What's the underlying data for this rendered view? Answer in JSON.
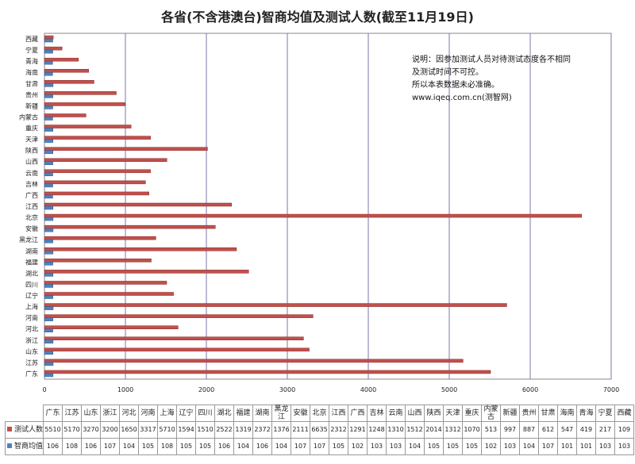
{
  "chart_data": {
    "type": "bar",
    "orientation": "horizontal",
    "title": "各省(不含港澳台)智商均值及测试人数(截至11月19日)",
    "categories": [
      "广东",
      "江苏",
      "山东",
      "浙江",
      "河北",
      "河南",
      "上海",
      "辽宁",
      "四川",
      "湖北",
      "福建",
      "湖南",
      "黑龙江",
      "安徽",
      "北京",
      "江西",
      "广西",
      "吉林",
      "云南",
      "山西",
      "陕西",
      "天津",
      "重庆",
      "内蒙古",
      "新疆",
      "贵州",
      "甘肃",
      "海南",
      "青海",
      "宁夏",
      "西藏"
    ],
    "series": [
      {
        "name": "测试人数",
        "color": "#c0504d",
        "values": [
          5510,
          5170,
          3270,
          3200,
          1650,
          3317,
          5710,
          1594,
          1510,
          2522,
          1319,
          2372,
          1376,
          2111,
          6635,
          2312,
          1291,
          1248,
          1310,
          1512,
          2014,
          1312,
          1070,
          513,
          997,
          887,
          612,
          547,
          419,
          217,
          109
        ]
      },
      {
        "name": "智商均值",
        "color": "#4f81bd",
        "values": [
          106,
          108,
          106,
          107,
          104,
          105,
          108,
          105,
          105,
          106,
          104,
          106,
          104,
          107,
          107,
          105,
          102,
          103,
          103,
          104,
          105,
          105,
          105,
          102,
          103,
          104,
          107,
          101,
          101,
          103,
          103
        ]
      }
    ],
    "xlim": [
      0,
      7000
    ],
    "xticks": [
      "0",
      "1000",
      "2000",
      "3000",
      "4000",
      "5000",
      "6000",
      "7000"
    ],
    "grid": true,
    "legend": "data-table"
  },
  "note": [
    "说明：因参加测试人员对待测试态度各不相同",
    "及测试时间不可控。",
    "所以本表数据未必准确。",
    "www.iqeq.com.cn(测智网)"
  ]
}
